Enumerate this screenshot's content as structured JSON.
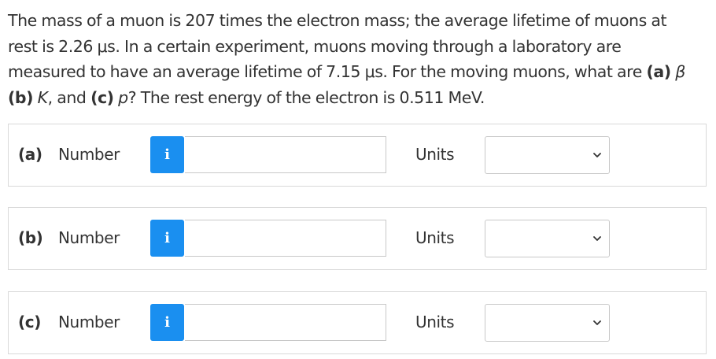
{
  "question": {
    "line1": "The mass of a muon is 207 times the electron mass; the average lifetime of muons at",
    "line2": "rest is 2.26 μs. In a certain experiment, muons moving through a laboratory are",
    "line3_pre": "measured to have an average lifetime of 7.15 μs. For the moving muons, what are ",
    "line3_part_a": "(a)",
    "line3_beta": " β",
    "line4_part_b": "(b)",
    "line4_K": " K",
    "line4_mid": ", and ",
    "line4_part_c": "(c)",
    "line4_p": " p",
    "line4_post": "? The rest energy of the electron is 0.511 MeV."
  },
  "parts": [
    {
      "label": "(a)",
      "number_label": "Number",
      "info_icon": "i",
      "value": "",
      "units_label": "Units",
      "units_value": ""
    },
    {
      "label": "(b)",
      "number_label": "Number",
      "info_icon": "i",
      "value": "",
      "units_label": "Units",
      "units_value": ""
    },
    {
      "label": "(c)",
      "number_label": "Number",
      "info_icon": "i",
      "value": "",
      "units_label": "Units",
      "units_value": ""
    }
  ],
  "colors": {
    "info_button": "#1a8ff0",
    "text": "#333333",
    "border": "#d9d9d9"
  },
  "icons": {
    "info": "info-icon",
    "dropdown": "chevron-down-icon"
  }
}
